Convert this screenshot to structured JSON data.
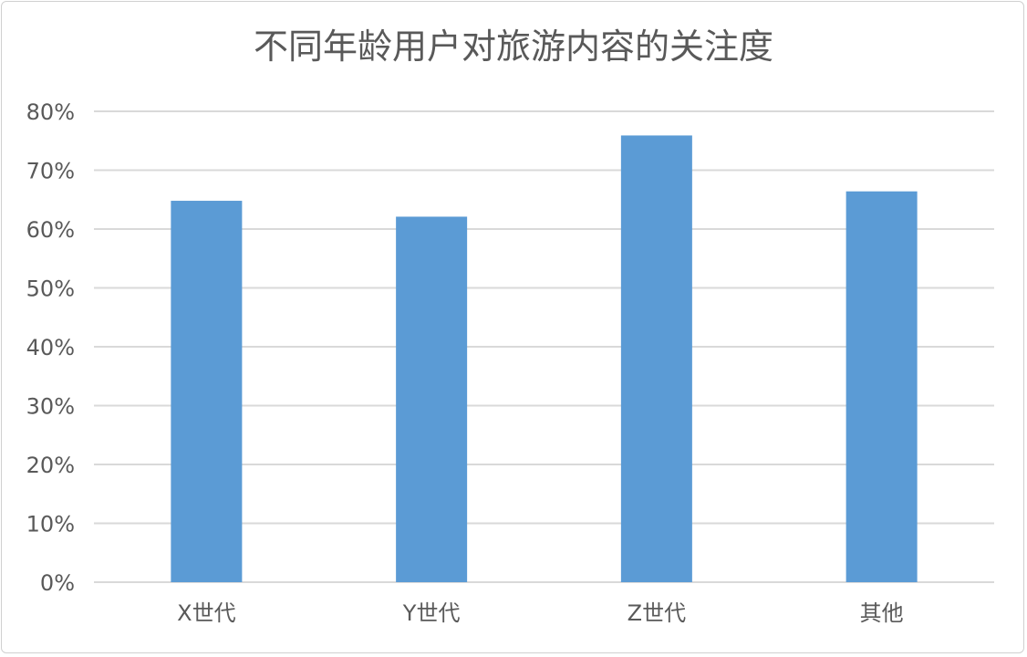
{
  "chart_data": {
    "type": "bar",
    "title": "不同年龄用户对旅游内容的关注度",
    "categories": [
      "X世代",
      "Y世代",
      "Z世代",
      "其他"
    ],
    "values": [
      64.8,
      62.1,
      75.9,
      66.4
    ],
    "value_unit": "%",
    "xlabel": "",
    "ylabel": "",
    "ylim": [
      0,
      80
    ],
    "yticks": [
      "0%",
      "10%",
      "20%",
      "30%",
      "40%",
      "50%",
      "60%",
      "70%",
      "80%"
    ],
    "grid": true,
    "legend": "none",
    "bar_color": "#5B9BD5",
    "grid_color": "#D9D9D9"
  }
}
